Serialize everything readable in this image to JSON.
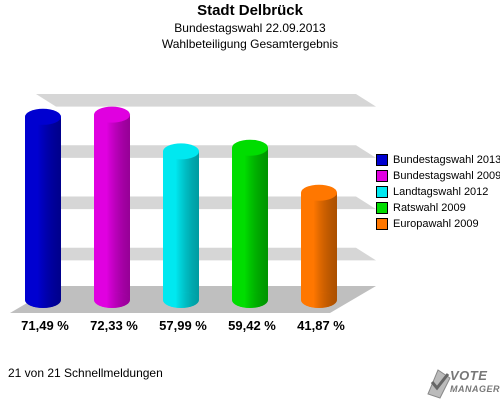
{
  "header": {
    "title": "Stadt Delbrück",
    "subtitle": "Bundestagswahl 22.09.2013",
    "subtitle2": "Wahlbeteiligung Gesamtergebnis"
  },
  "chart_data": {
    "type": "bar",
    "title": "Stadt Delbrück",
    "categories": [
      "Bundestagswahl 2013",
      "Bundestagswahl 2009",
      "Landtagswahl 2012",
      "Ratswahl 2009",
      "Europawahl 2009"
    ],
    "values": [
      71.49,
      72.33,
      57.99,
      59.42,
      41.87
    ],
    "value_labels": [
      "71,49 %",
      "72,33 %",
      "57,99 %",
      "59,42 %",
      "41,87 %"
    ],
    "colors": [
      "#0000d0",
      "#e000e0",
      "#00e8f0",
      "#00dd00",
      "#ff7700"
    ],
    "ylim": [
      0,
      80
    ],
    "grid": true,
    "legend_position": "right"
  },
  "legend": {
    "items": [
      {
        "label": "Bundestagswahl 2013",
        "color": "#0000d0"
      },
      {
        "label": "Bundestagswahl 2009",
        "color": "#e000e0"
      },
      {
        "label": "Landtagswahl 2012",
        "color": "#00e8f0"
      },
      {
        "label": "Ratswahl 2009",
        "color": "#00dd00"
      },
      {
        "label": "Europawahl 2009",
        "color": "#ff7700"
      }
    ]
  },
  "footer": {
    "status": "21 von 21 Schnellmeldungen"
  },
  "logo": {
    "line1": "VOTE",
    "line2": "MANAGER",
    "icon": "vote-manager-logo-icon"
  }
}
